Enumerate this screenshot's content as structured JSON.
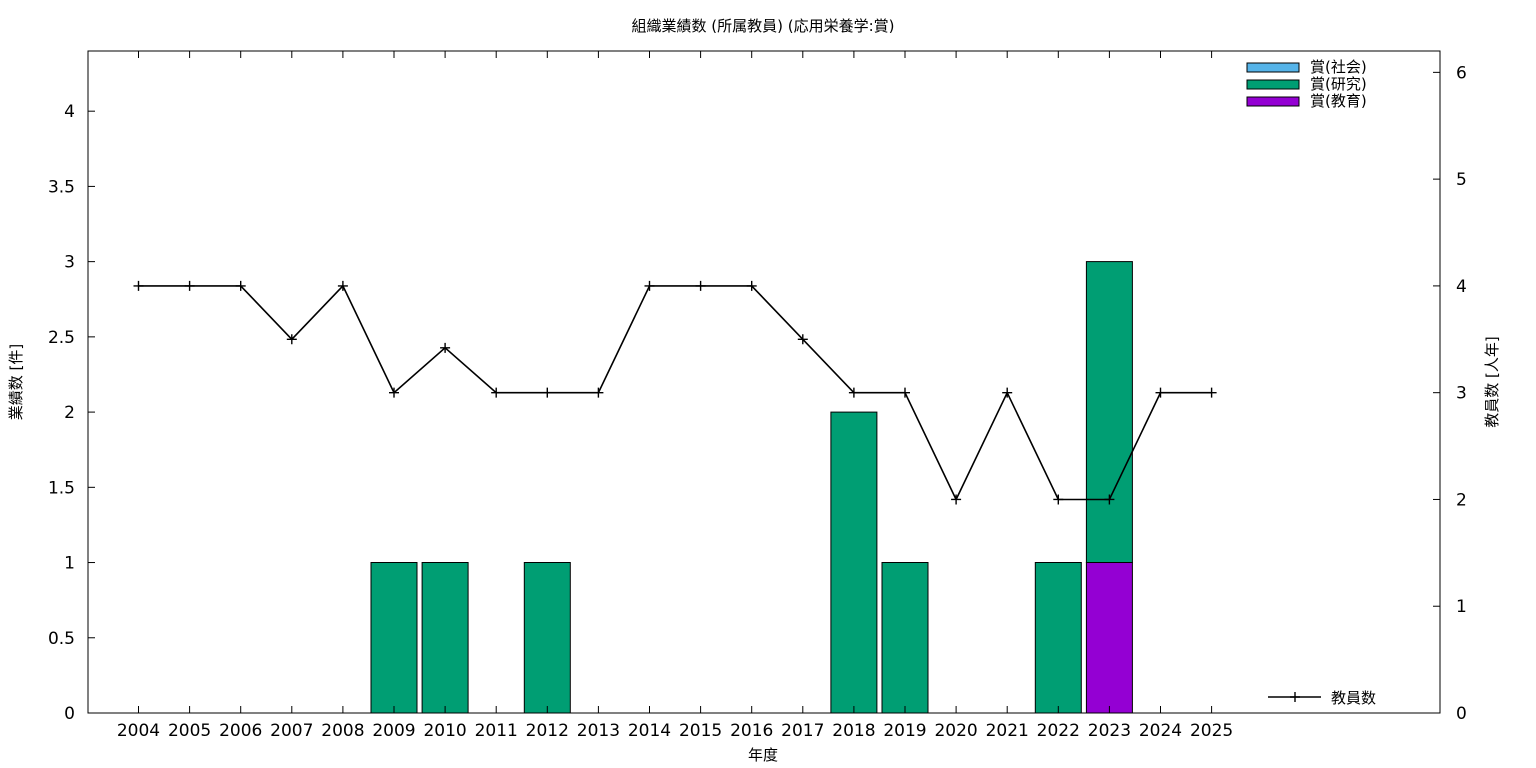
{
  "chart_data": {
    "type": "bar",
    "title": "組織業績数 (所属教員) (応用栄養学:賞)",
    "xlabel": "年度",
    "ylabel_left": "業績数 [件]",
    "ylabel_right": "教員数 [人年]",
    "categories": [
      "2004",
      "2005",
      "2006",
      "2007",
      "2008",
      "2009",
      "2010",
      "2011",
      "2012",
      "2013",
      "2014",
      "2015",
      "2016",
      "2017",
      "2018",
      "2019",
      "2020",
      "2021",
      "2022",
      "2023",
      "2024",
      "2025"
    ],
    "ylim_left": [
      0,
      4.4
    ],
    "yticks_left": [
      0,
      0.5,
      1,
      1.5,
      2,
      2.5,
      3,
      3.5,
      4
    ],
    "ytick_labels_left": [
      "0",
      "0.5",
      "1",
      "1.5",
      "2",
      "2.5",
      "3",
      "3.5",
      "4"
    ],
    "ylim_right": [
      0,
      6.2
    ],
    "yticks_right": [
      0,
      1,
      2,
      3,
      4,
      5,
      6
    ],
    "stacked": true,
    "series": [
      {
        "name": "賞(社会)",
        "color": "#56b4e9",
        "values": [
          0,
          0,
          0,
          0,
          0,
          0,
          0,
          0,
          0,
          0,
          0,
          0,
          0,
          0,
          0,
          0,
          0,
          0,
          0,
          0,
          0,
          0
        ]
      },
      {
        "name": "賞(研究)",
        "color": "#009e73",
        "values": [
          0,
          0,
          0,
          0,
          0,
          1,
          1,
          0,
          1,
          0,
          0,
          0,
          0,
          0,
          2,
          1,
          0,
          0,
          1,
          2,
          0,
          0
        ]
      },
      {
        "name": "賞(教育)",
        "color": "#9400d3",
        "values": [
          0,
          0,
          0,
          0,
          0,
          0,
          0,
          0,
          0,
          0,
          0,
          0,
          0,
          0,
          0,
          0,
          0,
          0,
          0,
          1,
          0,
          0
        ]
      }
    ],
    "stack_order": [
      "賞(教育)",
      "賞(研究)",
      "賞(社会)"
    ],
    "line_series": {
      "name": "教員数",
      "axis": "right",
      "color": "#000000",
      "values": [
        4,
        4,
        4,
        3.5,
        4,
        3,
        3.42,
        3,
        3,
        3,
        4,
        4,
        4,
        3.5,
        3,
        3,
        2,
        3,
        2,
        2,
        3,
        3
      ]
    },
    "legend_bars_position": "top-right",
    "legend_line_position": "bottom-right",
    "grid": false
  }
}
